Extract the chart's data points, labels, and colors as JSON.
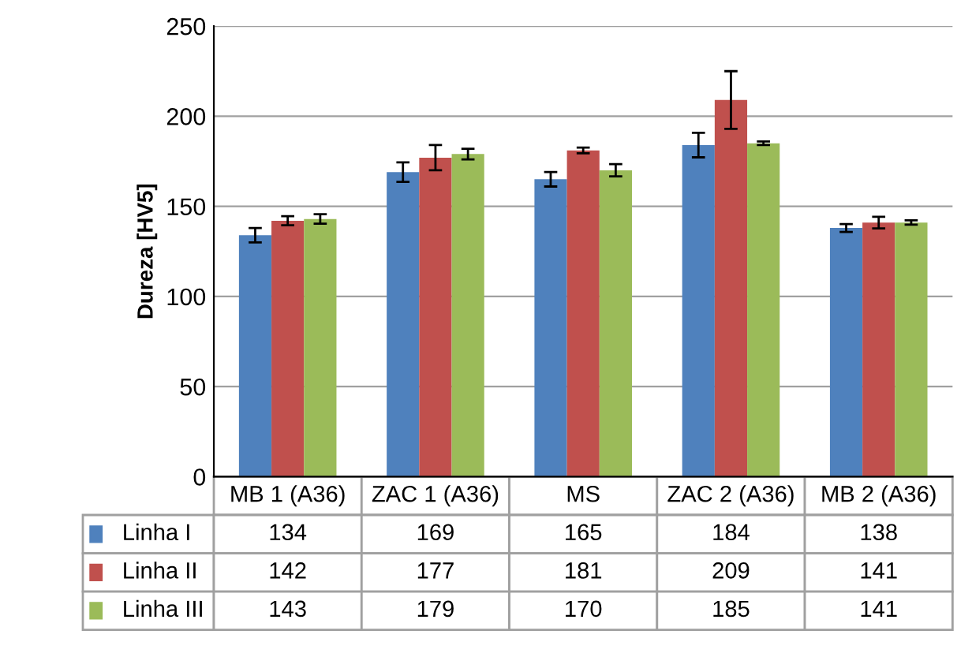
{
  "chart_data": {
    "type": "bar",
    "ylabel": "Dureza [HV5]",
    "categories": [
      "MB 1 (A36)",
      "ZAC 1 (A36)",
      "MS",
      "ZAC 2 (A36)",
      "MB 2 (A36)"
    ],
    "series": [
      {
        "name": "Linha I",
        "color": "#4f81bd",
        "values": [
          134,
          169,
          165,
          184,
          138
        ],
        "errors": [
          4,
          5.4,
          4,
          6.8,
          2.2
        ]
      },
      {
        "name": "Linha II",
        "color": "#c0504d",
        "values": [
          142,
          177,
          181,
          209,
          141
        ],
        "errors": [
          2.5,
          7,
          1.6,
          16,
          3.2
        ]
      },
      {
        "name": "Linha III",
        "color": "#9bbb59",
        "values": [
          143,
          179,
          170,
          185,
          141
        ],
        "errors": [
          2.6,
          3,
          3.4,
          1,
          1.2
        ]
      }
    ],
    "ylim": [
      0,
      250
    ],
    "yticks": [
      0,
      50,
      100,
      150,
      200,
      250
    ],
    "grid": "y",
    "legend": "bottom",
    "data_labels": true
  }
}
